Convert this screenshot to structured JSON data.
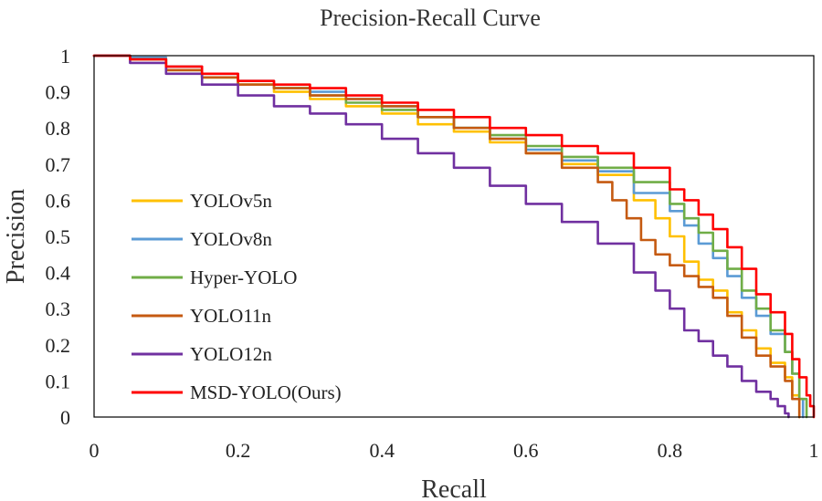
{
  "chart_data": {
    "type": "line",
    "title": "Precision-Recall Curve",
    "xlabel": "Recall",
    "ylabel": "Precision",
    "xlim": [
      0,
      1
    ],
    "ylim": [
      0,
      1
    ],
    "xticks": [
      0,
      0.2,
      0.4,
      0.6,
      0.8,
      1
    ],
    "xtick_labels": [
      "0",
      "0.2",
      "0.4",
      "0.6",
      "0.8",
      "1"
    ],
    "yticks": [
      0,
      0.1,
      0.2,
      0.3,
      0.4,
      0.5,
      0.6,
      0.7,
      0.8,
      0.9,
      1
    ],
    "ytick_labels": [
      "0",
      "0.1",
      "0.2",
      "0.3",
      "0.4",
      "0.5",
      "0.6",
      "0.7",
      "0.8",
      "0.9",
      "1"
    ],
    "grid": false,
    "legend_position": "left",
    "series": [
      {
        "name": "YOLOv5n",
        "color": "#FFC000",
        "x": [
          0,
          0.05,
          0.1,
          0.15,
          0.2,
          0.25,
          0.3,
          0.35,
          0.4,
          0.45,
          0.5,
          0.55,
          0.6,
          0.65,
          0.7,
          0.75,
          0.78,
          0.8,
          0.82,
          0.84,
          0.86,
          0.88,
          0.9,
          0.92,
          0.94,
          0.96,
          0.97,
          0.98,
          0.98
        ],
        "y": [
          1,
          0.99,
          0.96,
          0.94,
          0.92,
          0.9,
          0.88,
          0.86,
          0.84,
          0.81,
          0.79,
          0.76,
          0.73,
          0.7,
          0.67,
          0.6,
          0.55,
          0.5,
          0.43,
          0.38,
          0.35,
          0.29,
          0.24,
          0.19,
          0.15,
          0.11,
          0.06,
          0.03,
          0
        ]
      },
      {
        "name": "YOLOv8n",
        "color": "#5B9BD5",
        "x": [
          0,
          0.05,
          0.1,
          0.15,
          0.2,
          0.25,
          0.3,
          0.35,
          0.4,
          0.45,
          0.5,
          0.55,
          0.6,
          0.65,
          0.7,
          0.75,
          0.8,
          0.82,
          0.84,
          0.86,
          0.88,
          0.9,
          0.92,
          0.94,
          0.96,
          0.97,
          0.98,
          0.985
        ],
        "y": [
          1,
          0.995,
          0.97,
          0.95,
          0.93,
          0.91,
          0.9,
          0.88,
          0.86,
          0.83,
          0.8,
          0.77,
          0.74,
          0.71,
          0.68,
          0.62,
          0.57,
          0.53,
          0.48,
          0.44,
          0.39,
          0.33,
          0.28,
          0.23,
          0.18,
          0.12,
          0.05,
          0
        ]
      },
      {
        "name": "Hyper-YOLO",
        "color": "#70AD47",
        "x": [
          0,
          0.05,
          0.1,
          0.15,
          0.2,
          0.25,
          0.3,
          0.35,
          0.4,
          0.45,
          0.5,
          0.55,
          0.6,
          0.65,
          0.7,
          0.75,
          0.8,
          0.82,
          0.84,
          0.86,
          0.88,
          0.9,
          0.92,
          0.94,
          0.96,
          0.97,
          0.98,
          0.99
        ],
        "y": [
          1,
          0.99,
          0.96,
          0.94,
          0.92,
          0.91,
          0.89,
          0.87,
          0.85,
          0.83,
          0.8,
          0.78,
          0.75,
          0.72,
          0.69,
          0.65,
          0.59,
          0.55,
          0.51,
          0.46,
          0.41,
          0.35,
          0.3,
          0.24,
          0.18,
          0.12,
          0.05,
          0
        ]
      },
      {
        "name": "YOLO11n",
        "color": "#C55A11",
        "x": [
          0,
          0.05,
          0.1,
          0.15,
          0.2,
          0.25,
          0.3,
          0.35,
          0.4,
          0.45,
          0.5,
          0.55,
          0.6,
          0.65,
          0.7,
          0.72,
          0.74,
          0.76,
          0.78,
          0.8,
          0.82,
          0.84,
          0.86,
          0.88,
          0.9,
          0.92,
          0.94,
          0.96,
          0.97,
          0.98
        ],
        "y": [
          1,
          0.99,
          0.96,
          0.94,
          0.92,
          0.91,
          0.89,
          0.88,
          0.86,
          0.83,
          0.8,
          0.77,
          0.73,
          0.69,
          0.65,
          0.6,
          0.55,
          0.49,
          0.45,
          0.42,
          0.39,
          0.36,
          0.33,
          0.28,
          0.22,
          0.17,
          0.14,
          0.1,
          0.05,
          0
        ]
      },
      {
        "name": "YOLO12n",
        "color": "#7030A0",
        "x": [
          0,
          0.05,
          0.1,
          0.15,
          0.2,
          0.25,
          0.3,
          0.35,
          0.4,
          0.45,
          0.5,
          0.55,
          0.6,
          0.65,
          0.7,
          0.75,
          0.78,
          0.8,
          0.82,
          0.84,
          0.86,
          0.88,
          0.9,
          0.92,
          0.94,
          0.95,
          0.96,
          0.965
        ],
        "y": [
          1,
          0.98,
          0.95,
          0.92,
          0.89,
          0.86,
          0.84,
          0.81,
          0.77,
          0.73,
          0.69,
          0.64,
          0.59,
          0.54,
          0.48,
          0.4,
          0.35,
          0.3,
          0.24,
          0.21,
          0.17,
          0.14,
          0.1,
          0.07,
          0.05,
          0.03,
          0.01,
          0
        ]
      },
      {
        "name": "MSD-YOLO(Ours)",
        "color": "#FF0000",
        "x": [
          0,
          0.05,
          0.1,
          0.15,
          0.2,
          0.25,
          0.3,
          0.35,
          0.4,
          0.45,
          0.5,
          0.55,
          0.6,
          0.65,
          0.7,
          0.75,
          0.8,
          0.82,
          0.84,
          0.86,
          0.88,
          0.9,
          0.92,
          0.94,
          0.96,
          0.97,
          0.98,
          0.99,
          0.995,
          1.0
        ],
        "y": [
          1,
          0.99,
          0.97,
          0.95,
          0.93,
          0.92,
          0.91,
          0.89,
          0.87,
          0.85,
          0.83,
          0.8,
          0.78,
          0.75,
          0.73,
          0.69,
          0.63,
          0.6,
          0.56,
          0.52,
          0.47,
          0.41,
          0.34,
          0.29,
          0.23,
          0.16,
          0.11,
          0.06,
          0.03,
          0
        ]
      }
    ]
  }
}
